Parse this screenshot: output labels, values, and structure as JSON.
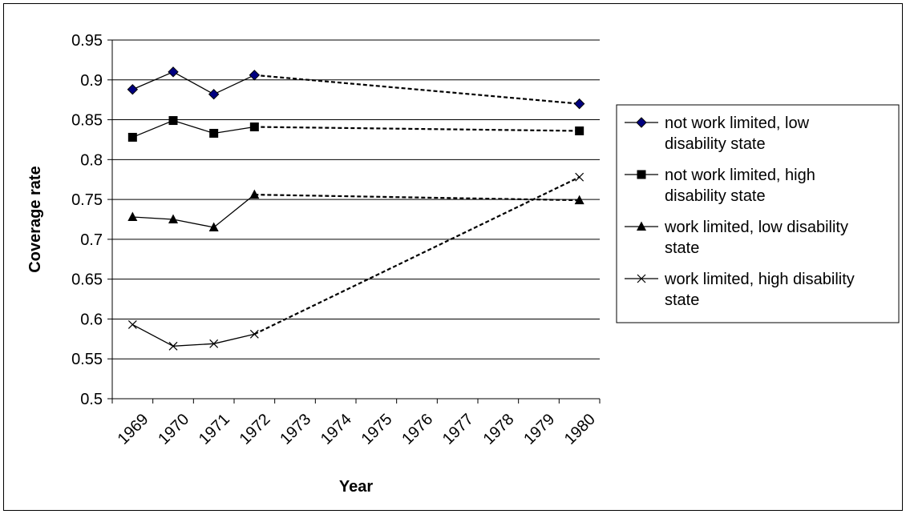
{
  "chart_data": {
    "type": "line",
    "title": "",
    "xlabel": "Year",
    "ylabel": "Coverage rate",
    "categories": [
      "1969",
      "1970",
      "1971",
      "1972",
      "1973",
      "1974",
      "1975",
      "1976",
      "1977",
      "1978",
      "1979",
      "1980"
    ],
    "ylim": [
      0.5,
      0.95
    ],
    "yticks": [
      "0.5",
      "0.55",
      "0.6",
      "0.65",
      "0.7",
      "0.75",
      "0.8",
      "0.85",
      "0.9",
      "0.95"
    ],
    "grid": true,
    "legend_position": "right",
    "interpolated_segment": {
      "from": "1972",
      "to": "1980",
      "style": "dashed"
    },
    "series": [
      {
        "name": "not work limited, low disability state",
        "marker": "diamond",
        "color": "#000080",
        "values": [
          0.888,
          0.91,
          0.882,
          0.906,
          null,
          null,
          null,
          null,
          null,
          null,
          null,
          0.87
        ]
      },
      {
        "name": "not work limited, high disability state",
        "marker": "square",
        "color": "#000000",
        "values": [
          0.828,
          0.849,
          0.833,
          0.841,
          null,
          null,
          null,
          null,
          null,
          null,
          null,
          0.836
        ]
      },
      {
        "name": "work limited, low disability state",
        "marker": "triangle",
        "color": "#000000",
        "values": [
          0.728,
          0.725,
          0.715,
          0.756,
          null,
          null,
          null,
          null,
          null,
          null,
          null,
          0.749
        ]
      },
      {
        "name": "work limited, high disability state",
        "marker": "x",
        "color": "#000000",
        "values": [
          0.593,
          0.566,
          0.569,
          0.581,
          null,
          null,
          null,
          null,
          null,
          null,
          null,
          0.778
        ]
      }
    ],
    "legend_lines": [
      [
        "not work limited, low",
        "disability state"
      ],
      [
        "not work limited, high",
        "disability state"
      ],
      [
        "work limited, low disability",
        "state"
      ],
      [
        "work limited, high disability",
        "state"
      ]
    ]
  }
}
